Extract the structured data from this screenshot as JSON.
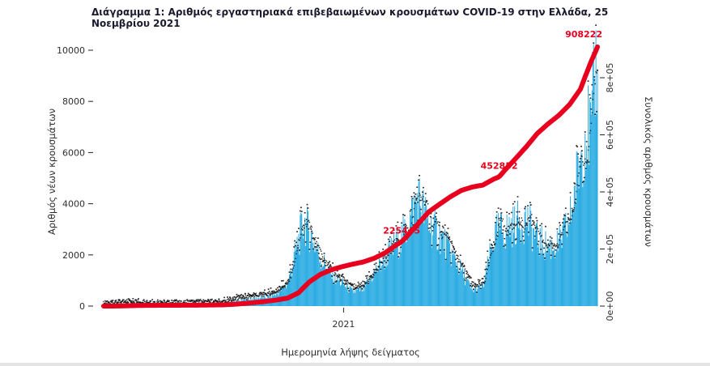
{
  "chart_data": {
    "type": "bar+line",
    "title": "Διάγραμμα 1: Αριθμός εργαστηριακά επιβεβαιωμένων κρουσμάτων COVID-19 στην Ελλάδα, 25 Νοεμβρίου 2021",
    "xlabel": "Ημερομηνία λήψης δείγματος",
    "ylabel_left": "Αριθμός νέων κρουσμάτων",
    "ylabel_right": "Συνολικός αριθμός κρουσμάτων",
    "x_tick_labels": [
      "2021"
    ],
    "x_tick_dates": [
      "2021-01-01"
    ],
    "left_axis": {
      "ticks": [
        0,
        2000,
        4000,
        6000,
        8000,
        10000
      ],
      "max": 10000
    },
    "right_axis": {
      "tick_labels": [
        "0e+00",
        "2e+05",
        "4e+05",
        "6e+05",
        "8e+05"
      ],
      "tick_values": [
        0,
        200000,
        400000,
        600000,
        800000
      ],
      "max": 800000
    },
    "legend": "none",
    "grid": false,
    "series_meta": [
      {
        "name": "daily-new-cases",
        "type": "bar",
        "axis": "left"
      },
      {
        "name": "cumulative-cases",
        "type": "line",
        "axis": "right"
      }
    ],
    "samples_format": [
      "date",
      "new_daily_cases",
      "cumulative_cases"
    ],
    "samples": [
      [
        "2020-02-26",
        5,
        10
      ],
      [
        "2020-03-11",
        35,
        120
      ],
      [
        "2020-03-25",
        70,
        820
      ],
      [
        "2020-04-08",
        60,
        1880
      ],
      [
        "2020-04-22",
        40,
        2420
      ],
      [
        "2020-05-06",
        25,
        2680
      ],
      [
        "2020-05-20",
        20,
        2850
      ],
      [
        "2020-06-03",
        25,
        2980
      ],
      [
        "2020-06-17",
        30,
        3160
      ],
      [
        "2020-07-01",
        35,
        3430
      ],
      [
        "2020-07-15",
        45,
        3920
      ],
      [
        "2020-07-29",
        70,
        4400
      ],
      [
        "2020-08-12",
        180,
        6180
      ],
      [
        "2020-08-26",
        240,
        9280
      ],
      [
        "2020-09-09",
        310,
        12600
      ],
      [
        "2020-09-23",
        350,
        16600
      ],
      [
        "2020-10-07",
        480,
        21400
      ],
      [
        "2020-10-21",
        880,
        28200
      ],
      [
        "2020-11-04",
        2600,
        47000
      ],
      [
        "2020-11-11",
        3300,
        66600
      ],
      [
        "2020-11-18",
        2900,
        85000
      ],
      [
        "2020-12-02",
        1900,
        111000
      ],
      [
        "2020-12-16",
        1200,
        127000
      ],
      [
        "2020-12-30",
        900,
        138000
      ],
      [
        "2021-01-13",
        550,
        147000
      ],
      [
        "2021-01-27",
        650,
        155000
      ],
      [
        "2021-02-10",
        1300,
        168000
      ],
      [
        "2021-02-24",
        1900,
        187000
      ],
      [
        "2021-03-10",
        2400,
        214000
      ],
      [
        "2021-03-17",
        2700,
        225445
      ],
      [
        "2021-03-24",
        3000,
        245000
      ],
      [
        "2021-04-07",
        4300,
        287000
      ],
      [
        "2021-04-21",
        3200,
        330000
      ],
      [
        "2021-05-05",
        2800,
        357000
      ],
      [
        "2021-05-19",
        2100,
        383000
      ],
      [
        "2021-06-02",
        1400,
        405000
      ],
      [
        "2021-06-16",
        600,
        417000
      ],
      [
        "2021-06-30",
        750,
        424000
      ],
      [
        "2021-07-14",
        2600,
        445000
      ],
      [
        "2021-07-21",
        3000,
        452852
      ],
      [
        "2021-07-28",
        2900,
        475000
      ],
      [
        "2021-08-11",
        3200,
        516000
      ],
      [
        "2021-08-25",
        3400,
        558000
      ],
      [
        "2021-09-08",
        2600,
        604000
      ],
      [
        "2021-09-22",
        2300,
        638000
      ],
      [
        "2021-10-06",
        2400,
        668000
      ],
      [
        "2021-10-20",
        3300,
        706000
      ],
      [
        "2021-11-03",
        5800,
        760000
      ],
      [
        "2021-11-10",
        7000,
        810000
      ],
      [
        "2021-11-17",
        6700,
        858000
      ],
      [
        "2021-11-24",
        9800,
        901000
      ],
      [
        "2021-11-25",
        10300,
        908222
      ]
    ],
    "annotations": [
      {
        "date": "2021-03-17",
        "value": 225445,
        "label": "225445"
      },
      {
        "date": "2021-07-21",
        "value": 452852,
        "label": "452852"
      },
      {
        "date": "2021-11-25",
        "value": 908222,
        "label": "908222"
      }
    ]
  },
  "colors": {
    "bars": "#29abe2",
    "line": "#e8001f",
    "markers": "#141414",
    "annotation_text": "#e8001f",
    "title_text": "#1a1a2e",
    "axis_text": "#2e2e2e"
  }
}
